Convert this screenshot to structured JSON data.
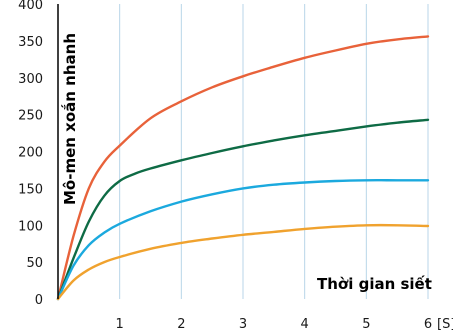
{
  "chart_data": {
    "type": "line",
    "title": "",
    "xlabel": "Thời gian siết",
    "ylabel": "Mô-men xoắn nhanh",
    "x_unit": "[S]",
    "xlim": [
      0,
      6
    ],
    "ylim": [
      0,
      400
    ],
    "x_ticks": [
      1,
      2,
      3,
      4,
      5,
      6
    ],
    "x_tick_labels": [
      "1",
      "2",
      "3",
      "4",
      "5",
      "6"
    ],
    "y_ticks": [
      0,
      50,
      100,
      150,
      200,
      250,
      300,
      350,
      400
    ],
    "y_tick_labels": [
      "0",
      "50",
      "100",
      "150",
      "200",
      "250",
      "300",
      "350",
      "400"
    ],
    "grid": "vertical",
    "series": [
      {
        "color": "#e8623a",
        "x": [
          0,
          0.25,
          0.5,
          0.75,
          1,
          1.5,
          2,
          2.5,
          3,
          3.5,
          4,
          4.5,
          5,
          5.5,
          6
        ],
        "values": [
          0,
          85,
          150,
          186,
          208,
          245,
          268,
          287,
          302,
          315,
          327,
          337,
          346,
          352,
          356
        ]
      },
      {
        "color": "#0e6b45",
        "x": [
          0,
          0.25,
          0.5,
          0.75,
          1,
          1.25,
          1.5,
          2,
          2.5,
          3,
          3.5,
          4,
          4.5,
          5,
          5.5,
          6
        ],
        "values": [
          0,
          55,
          105,
          140,
          160,
          170,
          177,
          188,
          198,
          207,
          215,
          222,
          228,
          234,
          239,
          243
        ]
      },
      {
        "color": "#1ba9de",
        "x": [
          0,
          0.25,
          0.5,
          0.75,
          1,
          1.5,
          2,
          2.5,
          3,
          3.5,
          4,
          4.5,
          5,
          5.5,
          6
        ],
        "values": [
          0,
          45,
          73,
          90,
          102,
          119,
          132,
          142,
          150,
          155,
          158,
          160,
          161,
          161,
          161
        ]
      },
      {
        "color": "#f0a22e",
        "x": [
          0,
          0.25,
          0.5,
          0.75,
          1,
          1.5,
          2,
          2.5,
          3,
          3.5,
          4,
          4.5,
          5,
          5.5,
          6
        ],
        "values": [
          0,
          25,
          40,
          50,
          57,
          68,
          76,
          82,
          87,
          91,
          95,
          98,
          100,
          100,
          99
        ]
      }
    ]
  }
}
